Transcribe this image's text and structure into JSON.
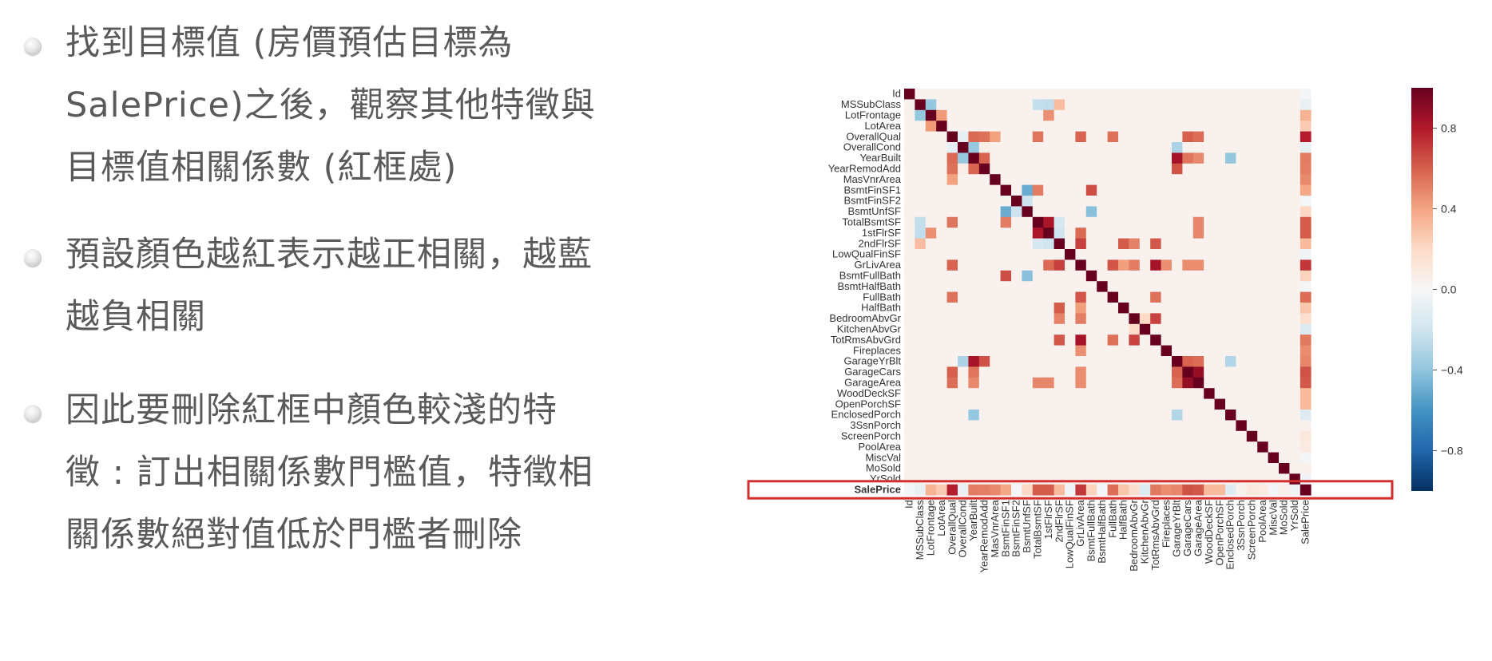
{
  "bullets": [
    {
      "lines": [
        "找到目標值 (房價預估目標為",
        "SalePrice)之後，觀察其他特徵與",
        "目標值相關係數 (紅框處)"
      ]
    },
    {
      "lines": [
        "預設顏色越紅表示越正相關，越藍",
        "越負相關"
      ]
    },
    {
      "lines": [
        "因此要刪除紅框中顏色較淺的特",
        "徵 : 訂出相關係數門檻值，特徵相",
        "關係數絕對值低於門檻者刪除"
      ]
    }
  ],
  "chart_data": {
    "type": "heatmap",
    "labels": [
      "Id",
      "MSSubClass",
      "LotFrontage",
      "LotArea",
      "OverallQual",
      "OverallCond",
      "YearBuilt",
      "YearRemodAdd",
      "MasVnrArea",
      "BsmtFinSF1",
      "BsmtFinSF2",
      "BsmtUnfSF",
      "TotalBsmtSF",
      "1stFlrSF",
      "2ndFlrSF",
      "LowQualFinSF",
      "GrLivArea",
      "BsmtFullBath",
      "BsmtHalfBath",
      "FullBath",
      "HalfBath",
      "BedroomAbvGr",
      "KitchenAbvGr",
      "TotRmsAbvGrd",
      "Fireplaces",
      "GarageYrBlt",
      "GarageCars",
      "GarageArea",
      "WoodDeckSF",
      "OpenPorchSF",
      "EnclosedPorch",
      "3SsnPorch",
      "ScreenPorch",
      "PoolArea",
      "MiscVal",
      "MoSold",
      "YrSold",
      "SalePrice"
    ],
    "highlight_row": "SalePrice",
    "highlight_color": "#d32f2f",
    "colorbar": {
      "ticks": [
        0.8,
        0.4,
        0.0,
        -0.4,
        -0.8
      ],
      "tick_labels": [
        "0.8",
        "0.4",
        "0.0",
        "−0.4",
        "−0.8"
      ],
      "range": [
        -1,
        1
      ]
    },
    "colormap": "RdBu_r",
    "known_values": {
      "OverallQual|SalePrice": 0.79,
      "GrLivArea|SalePrice": 0.71,
      "GarageCars|SalePrice": 0.64,
      "GarageArea|SalePrice": 0.62,
      "TotalBsmtSF|SalePrice": 0.61,
      "1stFlrSF|SalePrice": 0.61,
      "FullBath|SalePrice": 0.56,
      "TotRmsAbvGrd|SalePrice": 0.53,
      "YearBuilt|SalePrice": 0.52,
      "YearRemodAdd|SalePrice": 0.51,
      "GarageYrBlt|SalePrice": 0.49,
      "MasVnrArea|SalePrice": 0.48,
      "Fireplaces|SalePrice": 0.47,
      "BsmtFinSF1|SalePrice": 0.39,
      "LotFrontage|SalePrice": 0.35,
      "WoodDeckSF|SalePrice": 0.32,
      "2ndFlrSF|SalePrice": 0.32,
      "OpenPorchSF|SalePrice": 0.32,
      "HalfBath|SalePrice": 0.28,
      "LotArea|SalePrice": 0.26,
      "BsmtFullBath|SalePrice": 0.23,
      "BsmtUnfSF|SalePrice": 0.21,
      "BedroomAbvGr|SalePrice": 0.17,
      "ScreenPorch|SalePrice": 0.11,
      "PoolArea|SalePrice": 0.09,
      "MoSold|SalePrice": 0.05,
      "3SsnPorch|SalePrice": 0.04,
      "BsmtFinSF2|SalePrice": -0.01,
      "BsmtHalfBath|SalePrice": -0.02,
      "MiscVal|SalePrice": -0.02,
      "Id|SalePrice": -0.02,
      "LowQualFinSF|SalePrice": -0.03,
      "YrSold|SalePrice": -0.03,
      "OverallCond|SalePrice": -0.08,
      "MSSubClass|SalePrice": -0.08,
      "EnclosedPorch|SalePrice": -0.13,
      "KitchenAbvGr|SalePrice": -0.14,
      "GarageCars|GarageArea": 0.88,
      "YearBuilt|GarageYrBlt": 0.83,
      "GrLivArea|TotRmsAbvGrd": 0.83,
      "TotalBsmtSF|1stFlrSF": 0.82,
      "2ndFlrSF|GrLivArea": 0.69,
      "BedroomAbvGr|TotRmsAbvGrd": 0.68,
      "BsmtFinSF1|BsmtFullBath": 0.65,
      "GrLivArea|FullBath": 0.63,
      "YearRemodAdd|GarageYrBlt": 0.64,
      "OverallQual|GarageCars": 0.6,
      "OverallQual|YearBuilt": 0.57,
      "OverallQual|YearRemodAdd": 0.55,
      "2ndFlrSF|HalfBath": 0.61,
      "2ndFlrSF|TotRmsAbvGrd": 0.62,
      "OverallQual|GrLivArea": 0.59,
      "OverallQual|GarageArea": 0.56,
      "OverallQual|FullBath": 0.55,
      "OverallQual|TotalBsmtSF": 0.54,
      "YearBuilt|YearRemodAdd": 0.59,
      "YearBuilt|GarageCars": 0.54,
      "YearBuilt|GarageArea": 0.48,
      "1stFlrSF|GrLivArea": 0.57,
      "TotalBsmtSF|BsmtFinSF1": 0.52,
      "GrLivArea|HalfBath": 0.42,
      "GarageYrBlt|GarageCars": 0.59,
      "GarageYrBlt|GarageArea": 0.56,
      "OverallQual|MasVnrArea": 0.41,
      "FullBath|TotRmsAbvGrd": 0.55,
      "GrLivArea|Fireplaces": 0.46,
      "LotFrontage|LotArea": 0.43,
      "LotFrontage|1stFlrSF": 0.46,
      "TotalBsmtSF|GarageArea": 0.49,
      "1stFlrSF|GarageArea": 0.49,
      "GrLivArea|GarageCars": 0.47,
      "GrLivArea|GarageArea": 0.47,
      "MSSubClass|LotFrontage": -0.39,
      "MSSubClass|TotalBsmtSF": -0.24,
      "MSSubClass|1stFlrSF": -0.25,
      "MSSubClass|2ndFlrSF": 0.31,
      "OverallCond|YearBuilt": -0.38,
      "YearBuilt|EnclosedPorch": -0.39,
      "BsmtFinSF1|BsmtUnfSF": -0.5,
      "BsmtUnfSF|BsmtFullBath": -0.42,
      "BsmtFinSF2|BsmtUnfSF": -0.21,
      "2ndFlrSF|TotalBsmtSF": -0.17,
      "2ndFlrSF|1stFlrSF": -0.2,
      "BedroomAbvGr|2ndFlrSF": 0.5,
      "BedroomAbvGr|GrLivArea": 0.52,
      "KitchenAbvGr|BedroomAbvGr": 0.2,
      "GarageYrBlt|EnclosedPorch": -0.3,
      "OverallCond|GarageYrBlt": -0.32,
      "OverallQual|OverallCond": -0.09,
      "OverallCond|YearRemodAdd": 0.07
    }
  }
}
